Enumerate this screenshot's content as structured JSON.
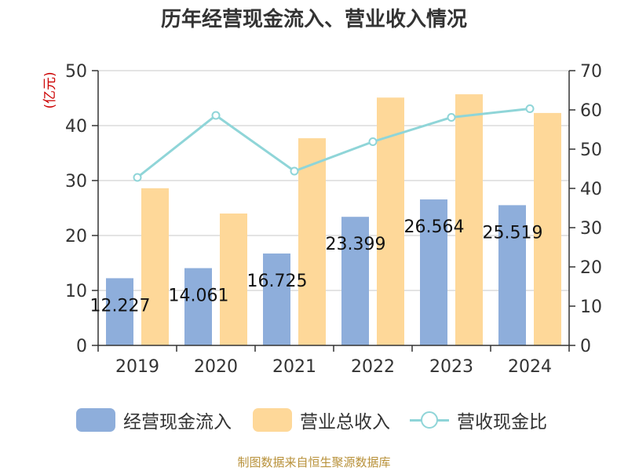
{
  "title": "历年经营现金流入、营业收入情况",
  "source_note": "制图数据来自恒生聚源数据库",
  "colors": {
    "cash_inflow": "#8eaedb",
    "revenue": "#fed899",
    "ratio_line": "#8fd5d8",
    "axis": "#333333",
    "grid": "#c8c8c8",
    "left_unit": "#cc0000"
  },
  "chart_data": {
    "type": "bar",
    "categories": [
      "2019",
      "2020",
      "2021",
      "2022",
      "2023",
      "2024"
    ],
    "y_left": {
      "unit_label": "(亿元)",
      "ylim": [
        0,
        50
      ],
      "ticks": [
        "0",
        "10",
        "20",
        "30",
        "40",
        "50"
      ]
    },
    "y_right": {
      "ylim": [
        0,
        70
      ],
      "ticks": [
        "0",
        "10",
        "20",
        "30",
        "40",
        "50",
        "60",
        "70"
      ]
    },
    "grid": true,
    "legend_position": "bottom",
    "series": [
      {
        "name": "经营现金流入",
        "type": "bar",
        "axis": "left",
        "values": [
          12.227,
          14.061,
          16.725,
          23.399,
          26.564,
          25.519
        ],
        "labels": [
          "12.227",
          "14.061",
          "16.725",
          "23.399",
          "26.564",
          "25.519"
        ]
      },
      {
        "name": "营业总收入",
        "type": "bar",
        "axis": "left",
        "values": [
          28.6,
          24.0,
          37.7,
          45.1,
          45.7,
          42.3
        ]
      },
      {
        "name": "营收现金比",
        "type": "line",
        "axis": "right",
        "values": [
          42.8,
          58.6,
          44.4,
          51.9,
          58.1,
          60.3
        ]
      }
    ]
  }
}
